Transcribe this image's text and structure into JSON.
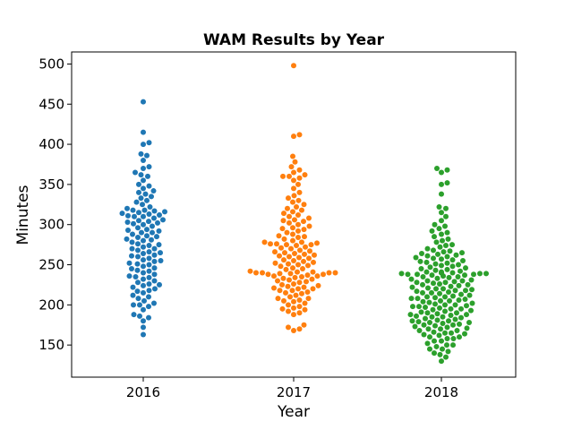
{
  "chart_data": {
    "type": "scatter",
    "subtype": "swarm",
    "title": "WAM Results by Year",
    "xlabel": "Year",
    "ylabel": "Minutes",
    "categories": [
      "2016",
      "2017",
      "2018"
    ],
    "ylim": [
      110,
      515
    ],
    "yticks": [
      150,
      200,
      250,
      300,
      350,
      400,
      450,
      500
    ],
    "grid": false,
    "colors": [
      "#1f77b4",
      "#ff7f0e",
      "#2ca02c"
    ],
    "series": [
      {
        "category": "2016",
        "values": [
          163,
          172,
          180,
          184,
          186,
          188,
          194,
          198,
          200,
          200,
          202,
          205,
          208,
          210,
          212,
          215,
          217,
          218,
          220,
          222,
          224,
          225,
          226,
          228,
          230,
          232,
          234,
          235,
          236,
          238,
          240,
          242,
          243,
          245,
          246,
          248,
          250,
          251,
          252,
          254,
          255,
          256,
          258,
          260,
          261,
          262,
          264,
          265,
          266,
          268,
          270,
          270,
          272,
          274,
          275,
          276,
          278,
          280,
          281,
          282,
          284,
          285,
          286,
          288,
          290,
          290,
          292,
          293,
          294,
          296,
          298,
          300,
          301,
          302,
          303,
          304,
          305,
          306,
          308,
          310,
          310,
          311,
          312,
          313,
          314,
          315,
          316,
          317,
          318,
          318,
          320,
          322,
          325,
          328,
          330,
          333,
          335,
          338,
          340,
          342,
          345,
          348,
          350,
          355,
          360,
          362,
          365,
          370,
          372,
          380,
          386,
          388,
          400,
          402,
          415,
          453
        ]
      },
      {
        "category": "2017",
        "values": [
          168,
          170,
          172,
          175,
          188,
          190,
          192,
          194,
          195,
          196,
          198,
          200,
          202,
          204,
          205,
          206,
          208,
          208,
          210,
          212,
          214,
          215,
          216,
          218,
          218,
          220,
          220,
          221,
          222,
          223,
          224,
          225,
          226,
          228,
          229,
          230,
          231,
          232,
          233,
          234,
          235,
          236,
          236,
          237,
          238,
          238,
          239,
          239,
          240,
          240,
          240,
          240,
          241,
          241,
          242,
          244,
          245,
          246,
          248,
          249,
          250,
          251,
          252,
          253,
          254,
          255,
          256,
          258,
          259,
          260,
          261,
          262,
          263,
          264,
          265,
          266,
          267,
          268,
          270,
          271,
          272,
          274,
          275,
          275,
          276,
          276,
          277,
          278,
          278,
          280,
          282,
          284,
          285,
          286,
          288,
          290,
          292,
          294,
          295,
          296,
          298,
          300,
          302,
          304,
          305,
          306,
          308,
          310,
          312,
          314,
          316,
          318,
          320,
          322,
          325,
          328,
          330,
          333,
          336,
          340,
          345,
          350,
          355,
          358,
          360,
          360,
          362,
          365,
          368,
          372,
          378,
          385,
          410,
          412,
          498
        ]
      },
      {
        "category": "2018",
        "values": [
          130,
          135,
          138,
          140,
          142,
          145,
          145,
          148,
          150,
          150,
          152,
          155,
          155,
          158,
          158,
          160,
          160,
          162,
          163,
          164,
          165,
          165,
          166,
          168,
          168,
          170,
          170,
          171,
          172,
          173,
          174,
          175,
          175,
          176,
          177,
          178,
          178,
          179,
          180,
          180,
          181,
          182,
          183,
          184,
          185,
          185,
          186,
          187,
          188,
          188,
          189,
          190,
          190,
          191,
          192,
          193,
          194,
          195,
          195,
          196,
          197,
          198,
          198,
          199,
          200,
          200,
          201,
          202,
          203,
          204,
          205,
          205,
          206,
          207,
          208,
          208,
          209,
          210,
          210,
          211,
          212,
          213,
          214,
          215,
          215,
          216,
          217,
          218,
          218,
          219,
          220,
          220,
          221,
          222,
          223,
          224,
          225,
          225,
          226,
          227,
          228,
          228,
          229,
          230,
          230,
          231,
          232,
          233,
          234,
          235,
          235,
          236,
          237,
          237,
          238,
          238,
          238,
          239,
          239,
          239,
          240,
          240,
          240,
          240,
          241,
          241,
          242,
          243,
          244,
          245,
          246,
          247,
          248,
          249,
          250,
          251,
          252,
          253,
          254,
          255,
          256,
          257,
          258,
          259,
          260,
          261,
          262,
          263,
          264,
          265,
          266,
          267,
          268,
          270,
          272,
          274,
          275,
          278,
          280,
          282,
          285,
          288,
          290,
          292,
          295,
          298,
          300,
          305,
          310,
          315,
          320,
          322,
          338,
          350,
          352,
          365,
          368,
          370
        ]
      }
    ]
  }
}
